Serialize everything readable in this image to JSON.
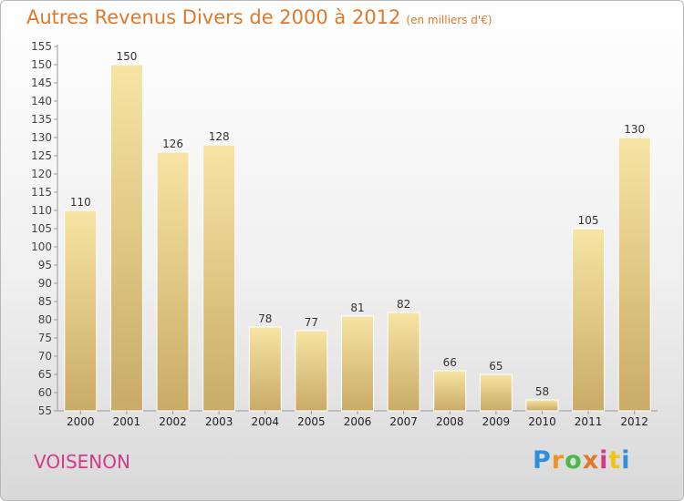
{
  "header": {
    "title": "Autres Revenus Divers de 2000 à 2012",
    "subtitle": "(en milliers d'€)"
  },
  "footer": {
    "place": "VOISENON",
    "logo": [
      "P",
      "r",
      "o",
      "x",
      "i",
      "t",
      "i"
    ]
  },
  "colors": {
    "title": "#e0782a",
    "place": "#d33a8c",
    "bar_light": "#f7e4a4",
    "bar_dark": "#c9ab66",
    "logo_letters": [
      "#2f8fd8",
      "#f0941f",
      "#4cb848",
      "#e0782a",
      "#d33a8c",
      "#f0c419",
      "#2f8fd8"
    ]
  },
  "chart_data": {
    "type": "bar",
    "categories": [
      "2000",
      "2001",
      "2002",
      "2003",
      "2004",
      "2005",
      "2006",
      "2007",
      "2008",
      "2009",
      "2010",
      "2011",
      "2012"
    ],
    "values": [
      110,
      150,
      126,
      128,
      78,
      77,
      81,
      82,
      66,
      65,
      58,
      105,
      130
    ],
    "ylim": [
      55,
      155
    ],
    "ytick_step": 5,
    "grid": false,
    "data_labels": true
  }
}
